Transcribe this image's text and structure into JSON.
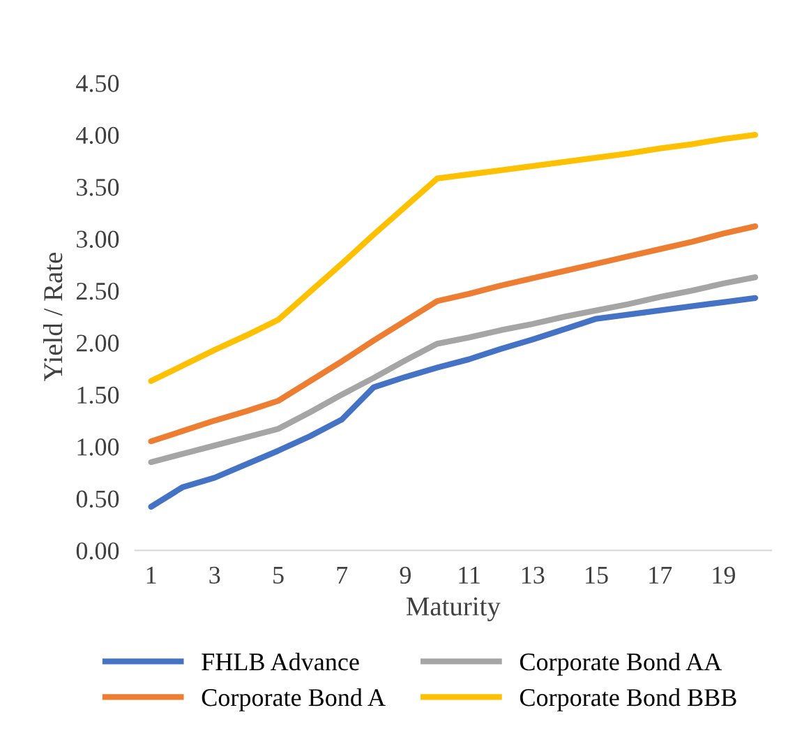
{
  "chart_data": {
    "type": "line",
    "xlabel": "Maturity",
    "ylabel": "Yield / Rate",
    "categories": [
      "1",
      null,
      "3",
      null,
      "5",
      null,
      "7",
      null,
      "9",
      null,
      "11",
      null,
      "13",
      null,
      "15",
      null,
      "17",
      null,
      "19",
      null
    ],
    "series": [
      {
        "name": "FHLB Advance",
        "color": "#4472c4",
        "values": [
          0.42,
          0.61,
          0.7,
          0.83,
          0.96,
          1.1,
          1.26,
          1.57,
          1.67,
          1.76,
          1.84,
          1.94,
          2.03,
          2.13,
          2.23,
          2.27,
          2.31,
          2.35,
          2.39,
          2.43
        ]
      },
      {
        "name": "Corporate Bond A",
        "color": "#ed7d31",
        "values": [
          1.05,
          1.15,
          1.25,
          1.34,
          1.44,
          1.63,
          1.82,
          2.02,
          2.21,
          2.4,
          2.47,
          2.55,
          2.62,
          2.69,
          2.76,
          2.83,
          2.9,
          2.97,
          3.05,
          3.12
        ]
      },
      {
        "name": "Corporate Bond AA",
        "color": "#a5a5a5",
        "values": [
          0.85,
          0.93,
          1.01,
          1.09,
          1.17,
          1.33,
          1.5,
          1.66,
          1.83,
          1.99,
          2.05,
          2.12,
          2.18,
          2.25,
          2.31,
          2.37,
          2.44,
          2.5,
          2.57,
          2.63
        ]
      },
      {
        "name": "Corporate Bond BBB",
        "color": "#ffc000",
        "values": [
          1.63,
          1.78,
          1.93,
          2.07,
          2.22,
          2.49,
          2.76,
          3.04,
          3.31,
          3.58,
          3.62,
          3.66,
          3.7,
          3.74,
          3.78,
          3.82,
          3.87,
          3.91,
          3.96,
          4.0
        ]
      }
    ],
    "ylim": [
      0,
      4.5
    ],
    "yticks": [
      {
        "value": 0,
        "label": "0.00"
      },
      {
        "value": 0.5,
        "label": "0.50"
      },
      {
        "value": 1,
        "label": "1.00"
      },
      {
        "value": 1.5,
        "label": "1.50"
      },
      {
        "value": 2,
        "label": "2.00"
      },
      {
        "value": 2.5,
        "label": "2.50"
      },
      {
        "value": 3,
        "label": "3.00"
      },
      {
        "value": 3.5,
        "label": "3.50"
      },
      {
        "value": 4,
        "label": "4.00"
      },
      {
        "value": 4.5,
        "label": "4.50"
      }
    ],
    "grid": false,
    "legend": "bottom",
    "marker": "none",
    "line_style": "solid"
  }
}
